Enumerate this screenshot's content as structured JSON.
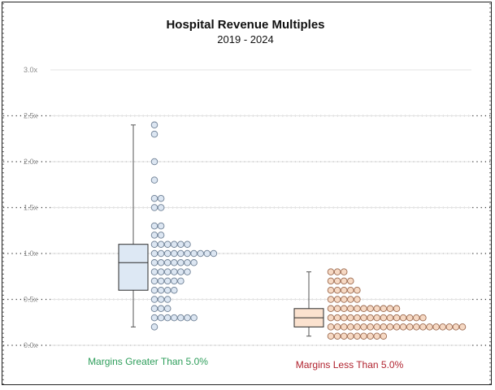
{
  "chart_data": {
    "type": "box-dot",
    "title": "Hospital Revenue Multiples",
    "subtitle": "2019 - 2024",
    "ylim": [
      0,
      3.0
    ],
    "yticks": [
      {
        "value": 0.0,
        "label": "0.0x"
      },
      {
        "value": 0.5,
        "label": "0.5x"
      },
      {
        "value": 1.0,
        "label": "1.0x"
      },
      {
        "value": 1.5,
        "label": "1.5x"
      },
      {
        "value": 2.0,
        "label": "2.0x"
      },
      {
        "value": 2.5,
        "label": "2.5x"
      },
      {
        "value": 3.0,
        "label": "3.0x"
      }
    ],
    "grid": true,
    "groups": [
      {
        "label": "Margins Greater Than 5.0%",
        "label_color": "#2e9e5b",
        "box_fill": "#dde8f4",
        "box_stroke": "#2b2b2b",
        "dot_fill": "#dce6f2",
        "dot_stroke": "#6d7f94",
        "box": {
          "min": 0.2,
          "q1": 0.6,
          "median": 0.9,
          "q3": 1.1,
          "max": 2.4
        },
        "dot_rows": [
          {
            "y": 2.4,
            "count": 1
          },
          {
            "y": 2.3,
            "count": 1
          },
          {
            "y": 2.0,
            "count": 1
          },
          {
            "y": 1.8,
            "count": 1
          },
          {
            "y": 1.6,
            "count": 2
          },
          {
            "y": 1.5,
            "count": 2
          },
          {
            "y": 1.3,
            "count": 2
          },
          {
            "y": 1.2,
            "count": 2
          },
          {
            "y": 1.1,
            "count": 6
          },
          {
            "y": 1.0,
            "count": 10
          },
          {
            "y": 0.9,
            "count": 7
          },
          {
            "y": 0.8,
            "count": 6
          },
          {
            "y": 0.7,
            "count": 5
          },
          {
            "y": 0.6,
            "count": 4
          },
          {
            "y": 0.5,
            "count": 3
          },
          {
            "y": 0.4,
            "count": 3
          },
          {
            "y": 0.3,
            "count": 7
          },
          {
            "y": 0.2,
            "count": 1
          }
        ]
      },
      {
        "label": "Margins Less Than 5.0%",
        "label_color": "#b0222e",
        "box_fill": "#fbe2cf",
        "box_stroke": "#2b2b2b",
        "dot_fill": "#f6d9c4",
        "dot_stroke": "#9c6a4f",
        "box": {
          "min": 0.1,
          "q1": 0.2,
          "median": 0.3,
          "q3": 0.4,
          "max": 0.8
        },
        "dot_rows": [
          {
            "y": 0.8,
            "count": 3
          },
          {
            "y": 0.7,
            "count": 4
          },
          {
            "y": 0.6,
            "count": 5
          },
          {
            "y": 0.5,
            "count": 5
          },
          {
            "y": 0.4,
            "count": 11
          },
          {
            "y": 0.3,
            "count": 15
          },
          {
            "y": 0.2,
            "count": 21
          },
          {
            "y": 0.1,
            "count": 9
          }
        ]
      }
    ]
  }
}
